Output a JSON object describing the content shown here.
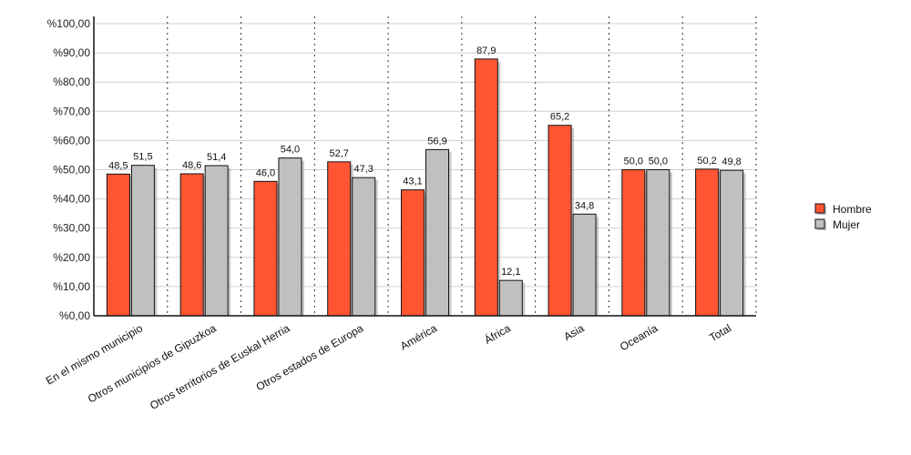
{
  "chart_data": {
    "type": "bar",
    "categories": [
      "En el mismo municipio",
      "Otros municipios de Gipuzkoa",
      "Otros territorios de Euskal Herria",
      "Otros estados de Europa",
      "América",
      "África",
      "Asia",
      "Oceanía",
      "Total"
    ],
    "series": [
      {
        "name": "Hombre",
        "color": "#ff5533",
        "values": [
          48.5,
          48.6,
          46.0,
          52.7,
          43.1,
          87.9,
          65.2,
          50.0,
          50.2
        ]
      },
      {
        "name": "Mujer",
        "color": "#c0c0c0",
        "values": [
          51.5,
          51.4,
          54.0,
          47.3,
          56.9,
          12.1,
          34.8,
          50.0,
          49.8
        ]
      }
    ],
    "value_labels": {
      "Hombre": [
        "48,5",
        "48,6",
        "46,0",
        "52,7",
        "43,1",
        "87,9",
        "65,2",
        "50,0",
        "50,2"
      ],
      "Mujer": [
        "51,5",
        "51,4",
        "54,0",
        "47,3",
        "56,9",
        "12,1",
        "34,8",
        "50,0",
        "49,8"
      ]
    },
    "y_ticks": [
      0,
      10,
      20,
      30,
      40,
      50,
      60,
      70,
      80,
      90,
      100
    ],
    "y_tick_labels": [
      "%0,00",
      "%10,00",
      "%20,00",
      "%30,00",
      "%40,00",
      "%50,00",
      "%60,00",
      "%70,00",
      "%80,00",
      "%90,00",
      "%100,00"
    ],
    "ylim": [
      0,
      100
    ],
    "title": "",
    "xlabel": "",
    "ylabel": "",
    "grid": true,
    "legend_position": "right"
  }
}
